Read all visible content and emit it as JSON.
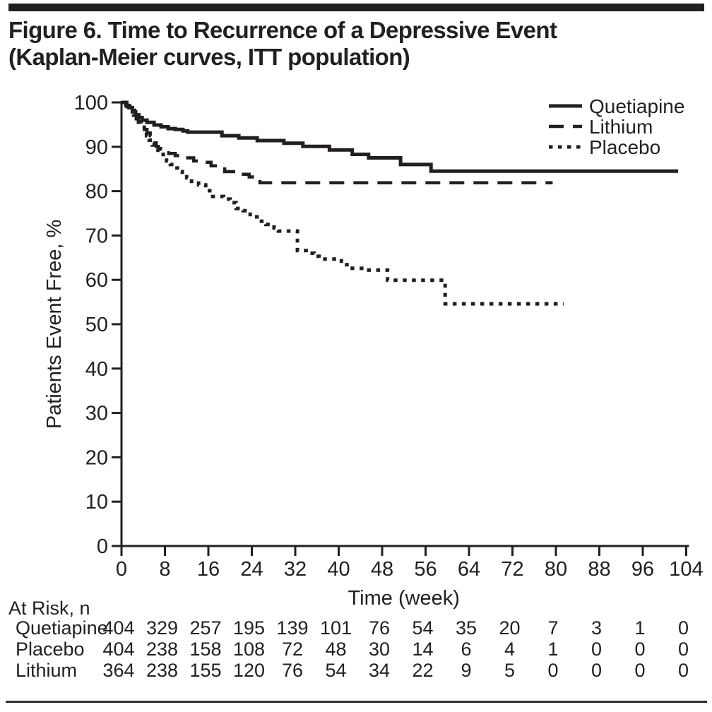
{
  "header": {
    "title_line1": "Figure 6. Time to Recurrence of a Depressive Event",
    "title_line2": "(Kaplan-Meier curves, ITT population)"
  },
  "colors": {
    "ink": "#231f20",
    "background": "#ffffff"
  },
  "chart_data": {
    "type": "line",
    "subtype": "kaplan-meier-step",
    "title": "Figure 6. Time to Recurrence of a Depressive Event (Kaplan-Meier curves, ITT population)",
    "xlabel": "Time (week)",
    "ylabel": "Patients Event Free, %",
    "xlim": [
      0,
      104
    ],
    "ylim": [
      0,
      100
    ],
    "x_ticks": [
      0,
      8,
      16,
      24,
      32,
      40,
      48,
      56,
      64,
      72,
      80,
      88,
      96,
      104
    ],
    "y_ticks": [
      0,
      10,
      20,
      30,
      40,
      50,
      60,
      70,
      80,
      90,
      100
    ],
    "grid": false,
    "legend_position": "top-right",
    "series": [
      {
        "name": "Quetiapine",
        "line_style": "solid",
        "end_week": 102.5,
        "points": [
          [
            0,
            100
          ],
          [
            0.8,
            99.3
          ],
          [
            1.4,
            98.8
          ],
          [
            2,
            97.9
          ],
          [
            2.6,
            97.2
          ],
          [
            3.2,
            96.6
          ],
          [
            3.8,
            96
          ],
          [
            4.7,
            95.5
          ],
          [
            6,
            94.9
          ],
          [
            7.3,
            94.5
          ],
          [
            8.6,
            94.1
          ],
          [
            9.9,
            93.9
          ],
          [
            11.3,
            93.6
          ],
          [
            12.2,
            93.3
          ],
          [
            18.5,
            92.5
          ],
          [
            21.6,
            92
          ],
          [
            25,
            91.4
          ],
          [
            29.9,
            90.8
          ],
          [
            33.4,
            90.1
          ],
          [
            38.3,
            89.3
          ],
          [
            42.5,
            88.3
          ],
          [
            45.5,
            87.5
          ],
          [
            51.4,
            86
          ],
          [
            57,
            84.5
          ]
        ]
      },
      {
        "name": "Lithium",
        "line_style": "dashed",
        "end_week": 79.4,
        "points": [
          [
            0,
            100
          ],
          [
            1,
            99
          ],
          [
            2.2,
            97.1
          ],
          [
            2.7,
            96.3
          ],
          [
            3.1,
            95.5
          ],
          [
            3.8,
            94.7
          ],
          [
            4.2,
            93.9
          ],
          [
            4.7,
            93.1
          ],
          [
            5.3,
            92.5
          ],
          [
            5.7,
            91.7
          ],
          [
            6.1,
            90.9
          ],
          [
            6.4,
            90.1
          ],
          [
            6.8,
            89.6
          ],
          [
            8,
            89.3
          ],
          [
            8.7,
            88.5
          ],
          [
            9.9,
            88
          ],
          [
            10.8,
            87.5
          ],
          [
            13.3,
            86.8
          ],
          [
            15,
            86.5
          ],
          [
            16.5,
            85.7
          ],
          [
            19,
            84.4
          ],
          [
            21.5,
            83.8
          ],
          [
            23.5,
            83.2
          ],
          [
            25.5,
            81.9
          ]
        ]
      },
      {
        "name": "Placebo",
        "line_style": "dotted",
        "end_week": 81.4,
        "points": [
          [
            0,
            100
          ],
          [
            1,
            99.2
          ],
          [
            1.8,
            98.2
          ],
          [
            2.4,
            97.2
          ],
          [
            3,
            96
          ],
          [
            3.6,
            94.8
          ],
          [
            4.2,
            93.5
          ],
          [
            4.6,
            92.5
          ],
          [
            5.1,
            91.5
          ],
          [
            5.7,
            90.4
          ],
          [
            6.4,
            89.2
          ],
          [
            7,
            88.3
          ],
          [
            7.7,
            87.5
          ],
          [
            8.3,
            86.8
          ],
          [
            9,
            86
          ],
          [
            9.6,
            85.2
          ],
          [
            10.3,
            84.4
          ],
          [
            11.2,
            83.8
          ],
          [
            12,
            83
          ],
          [
            12.9,
            82.2
          ],
          [
            14.2,
            81.4
          ],
          [
            15.5,
            80.1
          ],
          [
            16.8,
            78.8
          ],
          [
            18.8,
            78.2
          ],
          [
            20,
            77.4
          ],
          [
            21.1,
            76.1
          ],
          [
            22.4,
            75.6
          ],
          [
            23.7,
            74.2
          ],
          [
            25.3,
            73.2
          ],
          [
            26.6,
            72.5
          ],
          [
            28.1,
            71.7
          ],
          [
            28.9,
            71
          ],
          [
            32.4,
            66.6
          ],
          [
            34,
            66
          ],
          [
            35.5,
            65.3
          ],
          [
            36.4,
            64.7
          ],
          [
            40.5,
            63.4
          ],
          [
            42.5,
            62.6
          ],
          [
            45,
            62.2
          ],
          [
            49,
            59.9
          ],
          [
            59.6,
            54.6
          ]
        ]
      }
    ],
    "at_risk": {
      "label": "At Risk, n",
      "weeks": [
        0,
        8,
        16,
        24,
        32,
        40,
        48,
        56,
        64,
        72,
        80,
        88,
        96,
        104
      ],
      "rows": [
        {
          "name": "Quetiapine",
          "values": [
            404,
            329,
            257,
            195,
            139,
            101,
            76,
            54,
            35,
            20,
            7,
            3,
            1,
            0
          ]
        },
        {
          "name": "Placebo",
          "values": [
            404,
            238,
            158,
            108,
            72,
            48,
            30,
            14,
            6,
            4,
            1,
            0,
            0,
            0
          ]
        },
        {
          "name": "Lithium",
          "values": [
            364,
            238,
            155,
            120,
            76,
            54,
            34,
            22,
            9,
            5,
            0,
            0,
            0,
            0
          ]
        }
      ]
    }
  }
}
